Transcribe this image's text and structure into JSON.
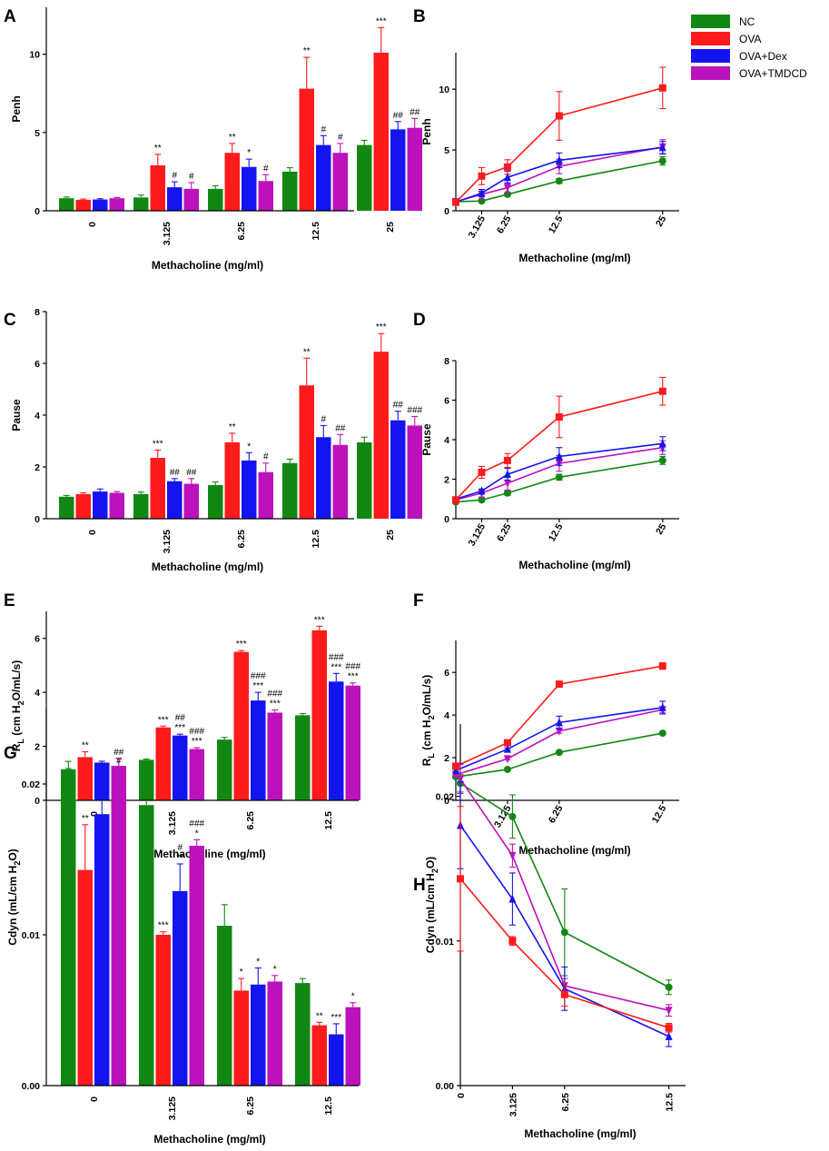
{
  "colors": {
    "NC": "#138713",
    "OVA": "#ff1b1b",
    "OVA+Dex": "#1414f0",
    "OVA+TMDCD": "#bb12bb"
  },
  "legend": {
    "items": [
      "NC",
      "OVA",
      "OVA+Dex",
      "OVA+TMDCD"
    ]
  },
  "chart_data": [
    {
      "panel": "A",
      "type": "bar",
      "ylabel": "Penh",
      "xlabel": "Methacholine (mg/ml)",
      "categories": [
        "0",
        "3.125",
        "6.25",
        "12.5",
        "25"
      ],
      "ylim": [
        0,
        13
      ],
      "yticks": [
        "0",
        "5",
        "10"
      ],
      "series": [
        {
          "name": "NC",
          "values": [
            0.8,
            0.85,
            1.4,
            2.5,
            4.2
          ],
          "errors": [
            0.08,
            0.15,
            0.2,
            0.25,
            0.3
          ]
        },
        {
          "name": "OVA",
          "values": [
            0.7,
            2.9,
            3.7,
            7.8,
            10.1
          ],
          "errors": [
            0.05,
            0.7,
            0.6,
            2.0,
            1.6
          ]
        },
        {
          "name": "OVA+Dex",
          "values": [
            0.72,
            1.5,
            2.8,
            4.2,
            5.2
          ],
          "errors": [
            0.05,
            0.35,
            0.5,
            0.6,
            0.5
          ]
        },
        {
          "name": "OVA+TMDCD",
          "values": [
            0.8,
            1.4,
            1.9,
            3.7,
            5.3
          ],
          "errors": [
            0.05,
            0.4,
            0.4,
            0.6,
            0.6
          ]
        }
      ],
      "annotations": [
        {
          "category": "3.125",
          "series": "OVA",
          "text": "**"
        },
        {
          "category": "3.125",
          "series": "OVA+Dex",
          "text": "#"
        },
        {
          "category": "3.125",
          "series": "OVA+TMDCD",
          "text": "#"
        },
        {
          "category": "6.25",
          "series": "OVA",
          "text": "**"
        },
        {
          "category": "6.25",
          "series": "OVA+Dex",
          "text": "*"
        },
        {
          "category": "6.25",
          "series": "OVA+TMDCD",
          "text": "#"
        },
        {
          "category": "12.5",
          "series": "OVA",
          "text": "**"
        },
        {
          "category": "12.5",
          "series": "OVA+Dex",
          "text": "#"
        },
        {
          "category": "12.5",
          "series": "OVA+TMDCD",
          "text": "#"
        },
        {
          "category": "25",
          "series": "OVA",
          "text": "***"
        },
        {
          "category": "25",
          "series": "OVA+Dex",
          "text": "##"
        },
        {
          "category": "25",
          "series": "OVA+TMDCD",
          "text": "##"
        }
      ]
    },
    {
      "panel": "B",
      "type": "line",
      "ylabel": "Penh",
      "xlabel": "Methacholine (mg/ml)",
      "x": [
        0,
        3.125,
        6.25,
        12.5,
        25
      ],
      "xticks": [
        "3.125",
        "6.25",
        "12.5",
        "25"
      ],
      "xlim": [
        0,
        27
      ],
      "ylim": [
        0,
        13
      ],
      "yticks": [
        "0",
        "5",
        "10"
      ],
      "series": [
        {
          "name": "NC",
          "values": [
            0.75,
            0.8,
            1.35,
            2.45,
            4.1
          ],
          "errors": [
            0.05,
            0.1,
            0.15,
            0.2,
            0.35
          ]
        },
        {
          "name": "OVA",
          "values": [
            0.7,
            2.85,
            3.6,
            7.8,
            10.1
          ],
          "errors": [
            0.05,
            0.7,
            0.6,
            2.0,
            1.7
          ]
        },
        {
          "name": "OVA+Dex",
          "values": [
            0.72,
            1.45,
            2.75,
            4.15,
            5.2
          ],
          "errors": [
            0.05,
            0.3,
            0.5,
            0.6,
            0.5
          ]
        },
        {
          "name": "OVA+TMDCD",
          "values": [
            0.75,
            1.35,
            1.9,
            3.65,
            5.25
          ],
          "errors": [
            0.05,
            0.4,
            0.4,
            0.6,
            0.6
          ]
        }
      ]
    },
    {
      "panel": "C",
      "type": "bar",
      "ylabel": "Pause",
      "xlabel": "Methacholine (mg/ml)",
      "categories": [
        "0",
        "3.125",
        "6.25",
        "12.5",
        "25"
      ],
      "ylim": [
        0,
        8
      ],
      "yticks": [
        "0",
        "2",
        "4",
        "6",
        "8"
      ],
      "series": [
        {
          "name": "NC",
          "values": [
            0.85,
            0.95,
            1.3,
            2.15,
            2.95
          ],
          "errors": [
            0.05,
            0.08,
            0.12,
            0.15,
            0.2
          ]
        },
        {
          "name": "OVA",
          "values": [
            0.95,
            2.35,
            2.95,
            5.15,
            6.45
          ],
          "errors": [
            0.05,
            0.3,
            0.35,
            1.05,
            0.7
          ]
        },
        {
          "name": "OVA+Dex",
          "values": [
            1.05,
            1.45,
            2.25,
            3.15,
            3.8
          ],
          "errors": [
            0.1,
            0.1,
            0.3,
            0.45,
            0.35
          ]
        },
        {
          "name": "OVA+TMDCD",
          "values": [
            1.0,
            1.35,
            1.8,
            2.85,
            3.6
          ],
          "errors": [
            0.05,
            0.2,
            0.35,
            0.4,
            0.35
          ]
        }
      ],
      "annotations": [
        {
          "category": "3.125",
          "series": "OVA",
          "text": "***"
        },
        {
          "category": "3.125",
          "series": "OVA+Dex",
          "text": "##"
        },
        {
          "category": "3.125",
          "series": "OVA+TMDCD",
          "text": "##"
        },
        {
          "category": "6.25",
          "series": "OVA",
          "text": "**"
        },
        {
          "category": "6.25",
          "series": "OVA+Dex",
          "text": "*"
        },
        {
          "category": "6.25",
          "series": "OVA+TMDCD",
          "text": "#"
        },
        {
          "category": "12.5",
          "series": "OVA",
          "text": "**"
        },
        {
          "category": "12.5",
          "series": "OVA+Dex",
          "text": "#"
        },
        {
          "category": "12.5",
          "series": "OVA+TMDCD",
          "text": "##"
        },
        {
          "category": "25",
          "series": "OVA",
          "text": "***"
        },
        {
          "category": "25",
          "series": "OVA+Dex",
          "text": "##"
        },
        {
          "category": "25",
          "series": "OVA+TMDCD",
          "text": "###"
        }
      ]
    },
    {
      "panel": "D",
      "type": "line",
      "ylabel": "Pause",
      "xlabel": "Methacholine (mg/ml)",
      "x": [
        0,
        3.125,
        6.25,
        12.5,
        25
      ],
      "xticks": [
        "3.125",
        "6.25",
        "12.5",
        "25"
      ],
      "xlim": [
        0,
        27
      ],
      "ylim": [
        0,
        8
      ],
      "yticks": [
        "0",
        "2",
        "4",
        "6",
        "8"
      ],
      "series": [
        {
          "name": "NC",
          "values": [
            0.85,
            0.95,
            1.3,
            2.1,
            2.95
          ],
          "errors": [
            0.05,
            0.08,
            0.12,
            0.15,
            0.2
          ]
        },
        {
          "name": "OVA",
          "values": [
            0.95,
            2.35,
            2.95,
            5.15,
            6.45
          ],
          "errors": [
            0.05,
            0.3,
            0.35,
            1.05,
            0.7
          ]
        },
        {
          "name": "OVA+Dex",
          "values": [
            1.0,
            1.4,
            2.25,
            3.15,
            3.8
          ],
          "errors": [
            0.1,
            0.1,
            0.3,
            0.45,
            0.35
          ]
        },
        {
          "name": "OVA+TMDCD",
          "values": [
            0.95,
            1.3,
            1.8,
            2.8,
            3.6
          ],
          "errors": [
            0.05,
            0.2,
            0.35,
            0.4,
            0.35
          ]
        }
      ]
    },
    {
      "panel": "E",
      "type": "bar",
      "ylabel_main": "R",
      "ylabel_sub": "L",
      "ylabel_rest": " (cm H",
      "ylabel_sub2": "2",
      "ylabel_end": "O/mL/s)",
      "xlabel": "Methacholine (mg/ml)",
      "categories": [
        "0",
        "3.125",
        "6.25",
        "12.5"
      ],
      "ylim": [
        0,
        7
      ],
      "yticks": [
        "0",
        "2",
        "4",
        "6"
      ],
      "series": [
        {
          "name": "NC",
          "values": [
            1.15,
            1.5,
            2.25,
            3.15
          ],
          "errors": [
            0.03,
            0.03,
            0.08,
            0.06
          ]
        },
        {
          "name": "OVA",
          "values": [
            1.6,
            2.7,
            5.5,
            6.3
          ],
          "errors": [
            0.2,
            0.05,
            0.05,
            0.15
          ]
        },
        {
          "name": "OVA+Dex",
          "values": [
            1.4,
            2.4,
            3.7,
            4.4
          ],
          "errors": [
            0.05,
            0.05,
            0.3,
            0.3
          ]
        },
        {
          "name": "OVA+TMDCD",
          "values": [
            1.2,
            1.9,
            3.25,
            4.25
          ],
          "errors": [
            0.03,
            0.05,
            0.1,
            0.1
          ]
        }
      ],
      "annotations": [
        {
          "category": "0",
          "series": "OVA",
          "text": "**"
        },
        {
          "category": "0",
          "series": "OVA+TMDCD",
          "text": "#"
        },
        {
          "category": "3.125",
          "series": "OVA",
          "text": "***"
        },
        {
          "category": "3.125",
          "series": "OVA+Dex",
          "text": "##"
        },
        {
          "category": "3.125",
          "series": "OVA+Dex",
          "text": "***"
        },
        {
          "category": "3.125",
          "series": "OVA+TMDCD",
          "text": "###"
        },
        {
          "category": "3.125",
          "series": "OVA+TMDCD",
          "text": "***"
        },
        {
          "category": "6.25",
          "series": "OVA",
          "text": "***"
        },
        {
          "category": "6.25",
          "series": "OVA+Dex",
          "text": "###"
        },
        {
          "category": "6.25",
          "series": "OVA+Dex",
          "text": "***"
        },
        {
          "category": "6.25",
          "series": "OVA+TMDCD",
          "text": "###"
        },
        {
          "category": "6.25",
          "series": "OVA+TMDCD",
          "text": "***"
        },
        {
          "category": "12.5",
          "series": "OVA",
          "text": "***"
        },
        {
          "category": "12.5",
          "series": "OVA+Dex",
          "text": "###"
        },
        {
          "category": "12.5",
          "series": "OVA+Dex",
          "text": "***"
        },
        {
          "category": "12.5",
          "series": "OVA+TMDCD",
          "text": "###"
        },
        {
          "category": "12.5",
          "series": "OVA+TMDCD",
          "text": "***"
        }
      ]
    },
    {
      "panel": "F",
      "type": "line",
      "ylabel_main": "R",
      "ylabel_sub": "L",
      "ylabel_rest": " (cm H",
      "ylabel_sub2": "2",
      "ylabel_end": "O/mL/s)",
      "xlabel": "Methacholine (mg/ml)",
      "x": [
        0,
        3.125,
        6.25,
        12.5
      ],
      "xticks": [
        "3.125",
        "6.25",
        "12.5"
      ],
      "xlim": [
        0,
        13.5
      ],
      "ylim": [
        0,
        7.5
      ],
      "yticks": [
        "0",
        "2",
        "4",
        "6"
      ],
      "series": [
        {
          "name": "NC",
          "values": [
            1.1,
            1.45,
            2.25,
            3.15
          ],
          "errors": [
            0.03,
            0.03,
            0.05,
            0.05
          ]
        },
        {
          "name": "OVA",
          "values": [
            1.6,
            2.7,
            5.45,
            6.3
          ],
          "errors": [
            0.15,
            0.05,
            0.05,
            0.15
          ]
        },
        {
          "name": "OVA+Dex",
          "values": [
            1.4,
            2.4,
            3.65,
            4.35
          ],
          "errors": [
            0.05,
            0.05,
            0.3,
            0.3
          ]
        },
        {
          "name": "OVA+TMDCD",
          "values": [
            1.2,
            1.95,
            3.25,
            4.25
          ],
          "errors": [
            0.03,
            0.05,
            0.1,
            0.15
          ]
        }
      ]
    },
    {
      "panel": "G",
      "type": "bar",
      "ylabel_main": "Cdyn (mL/cm H",
      "ylabel_sub2": "2",
      "ylabel_end": "O)",
      "xlabel": "Methacholine (mg/ml)",
      "categories": [
        "0",
        "3.125",
        "6.25",
        "12.5"
      ],
      "ylim": [
        0,
        0.025
      ],
      "yticks": [
        "0.00",
        "0.01",
        "0.02"
      ],
      "series": [
        {
          "name": "NC",
          "values": [
            0.0209,
            0.0186,
            0.0106,
            0.0068
          ],
          "errors": [
            0.0006,
            0.0006,
            0.0014,
            0.0003
          ]
        },
        {
          "name": "OVA",
          "values": [
            0.0143,
            0.01,
            0.0063,
            0.004
          ],
          "errors": [
            0.003,
            0.0002,
            0.0008,
            0.0002
          ]
        },
        {
          "name": "OVA+Dex",
          "values": [
            0.018,
            0.0129,
            0.0067,
            0.0034
          ],
          "errors": [
            0.0015,
            0.0018,
            0.0011,
            0.0007
          ]
        },
        {
          "name": "OVA+TMDCD",
          "values": [
            0.0212,
            0.0159,
            0.0069,
            0.0052
          ],
          "errors": [
            0.0005,
            0.0004,
            0.0004,
            0.0003
          ]
        }
      ],
      "annotations": [
        {
          "category": "0",
          "series": "OVA",
          "text": "**"
        },
        {
          "category": "0",
          "series": "OVA+TMDCD",
          "text": "##"
        },
        {
          "category": "3.125",
          "series": "OVA",
          "text": "***"
        },
        {
          "category": "3.125",
          "series": "OVA+Dex",
          "text": "#"
        },
        {
          "category": "3.125",
          "series": "OVA+Dex",
          "text": "**"
        },
        {
          "category": "3.125",
          "series": "OVA+TMDCD",
          "text": "###"
        },
        {
          "category": "3.125",
          "series": "OVA+TMDCD",
          "text": "*"
        },
        {
          "category": "6.25",
          "series": "OVA",
          "text": "*"
        },
        {
          "category": "6.25",
          "series": "OVA+Dex",
          "text": "*"
        },
        {
          "category": "6.25",
          "series": "OVA+TMDCD",
          "text": "*"
        },
        {
          "category": "12.5",
          "series": "OVA",
          "text": "**"
        },
        {
          "category": "12.5",
          "series": "OVA+Dex",
          "text": "***"
        },
        {
          "category": "12.5",
          "series": "OVA+TMDCD",
          "text": "*"
        }
      ]
    },
    {
      "panel": "H",
      "type": "line",
      "ylabel_main": "Cdyn (mL/cm H",
      "ylabel_sub2": "2",
      "ylabel_end": "O)",
      "xlabel": "Methacholine (mg/ml)",
      "x": [
        0,
        3.125,
        6.25,
        12.5
      ],
      "xticks": [
        "0",
        "3.125",
        "6.25",
        "12.5"
      ],
      "xlim": [
        0,
        13.5
      ],
      "ylim": [
        0,
        0.025
      ],
      "yticks": [
        "0.00",
        "0.01",
        "0.02"
      ],
      "series": [
        {
          "name": "NC",
          "values": [
            0.0209,
            0.0186,
            0.0106,
            0.0068
          ],
          "errors": [
            0.0006,
            0.0015,
            0.003,
            0.0005
          ]
        },
        {
          "name": "OVA",
          "values": [
            0.0143,
            0.01,
            0.0063,
            0.004
          ],
          "errors": [
            0.005,
            0.0003,
            0.0008,
            0.0003
          ]
        },
        {
          "name": "OVA+Dex",
          "values": [
            0.018,
            0.0129,
            0.0067,
            0.0034
          ],
          "errors": [
            0.003,
            0.0018,
            0.0015,
            0.0007
          ]
        },
        {
          "name": "OVA+TMDCD",
          "values": [
            0.0212,
            0.0159,
            0.0069,
            0.0052
          ],
          "errors": [
            0.001,
            0.0008,
            0.0005,
            0.0004
          ]
        }
      ]
    }
  ]
}
